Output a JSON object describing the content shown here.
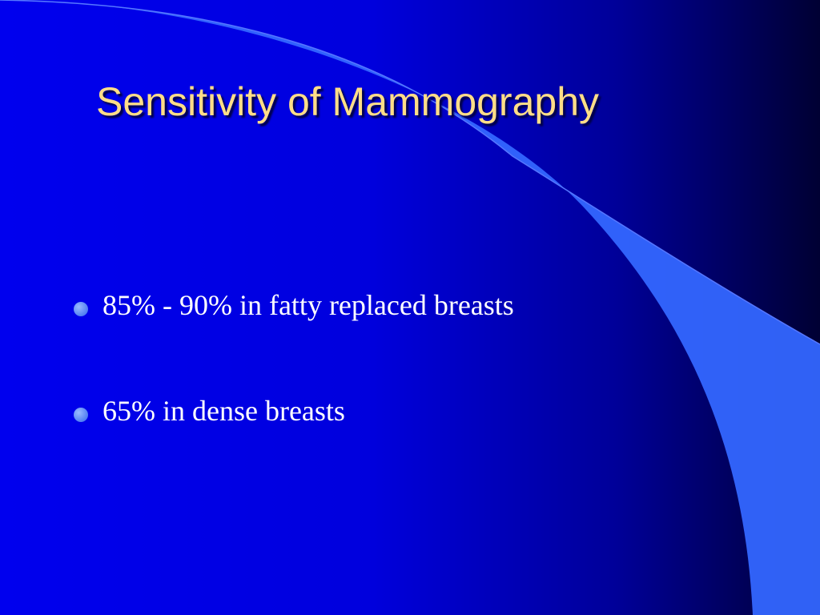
{
  "slide": {
    "title": "Sensitivity of Mammography",
    "bullets": [
      "85% - 90% in fatty replaced breasts",
      "65% in dense breasts"
    ]
  }
}
